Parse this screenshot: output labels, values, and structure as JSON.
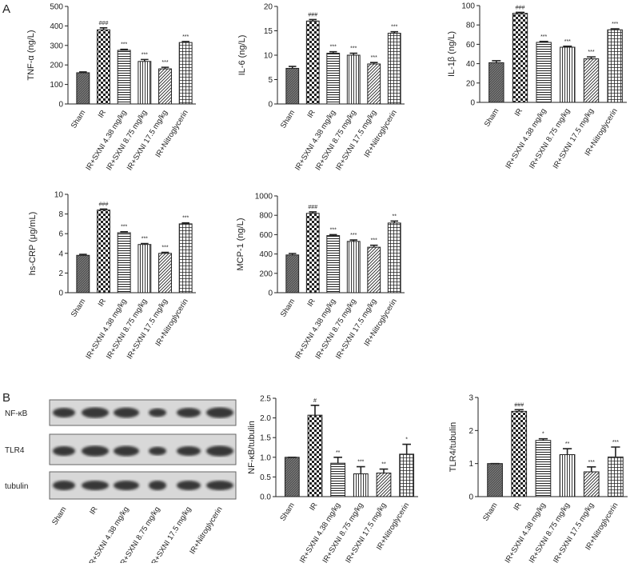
{
  "panels": [
    "A",
    "B"
  ],
  "blot": {
    "rows": [
      "NF-κB",
      "TLR4",
      "tubulin"
    ],
    "categories": [
      "Sham",
      "IR",
      "IR+SXNI 4.38 mg/kg",
      "IR+SXNI 8.75 mg/kg",
      "IR+SXNI 17.5 mg/kg",
      "IR+Nitroglycerin"
    ]
  },
  "chart_data": [
    {
      "type": "bar",
      "ylabel": "TNF-α (ng/L)",
      "categories": [
        "Sham",
        "IR",
        "IR+SXNI 4.38 mg/kg",
        "IR+SXNI 8.75 mg/kg",
        "IR+SXNI 17.5 mg/kg",
        "IR+Nitroglycerin"
      ],
      "values": [
        160,
        380,
        275,
        218,
        180,
        315
      ],
      "errors": [
        4,
        10,
        5,
        10,
        8,
        5
      ],
      "annotations": [
        null,
        "###",
        "***",
        "***",
        "***",
        "***"
      ],
      "ylim": [
        0,
        500
      ],
      "yticks": [
        0,
        100,
        200,
        300,
        400,
        500
      ]
    },
    {
      "type": "bar",
      "ylabel": "IL-6 (ng/L)",
      "categories": [
        "Sham",
        "IR",
        "IR+SXNI 4.38 mg/kg",
        "IR+SXNI 8.75 mg/kg",
        "IR+SXNI 17.5 mg/kg",
        "IR+Nitroglycerin"
      ],
      "values": [
        7.3,
        17,
        10.4,
        10,
        8.2,
        14.5
      ],
      "errors": [
        0.4,
        0.3,
        0.3,
        0.4,
        0.3,
        0.3
      ],
      "annotations": [
        null,
        "###",
        "***",
        "***",
        "***",
        "***"
      ],
      "ylim": [
        0,
        20
      ],
      "yticks": [
        0,
        5,
        10,
        15,
        20
      ]
    },
    {
      "type": "bar",
      "ylabel": "IL-1β (ng/L)",
      "categories": [
        "Sham",
        "IR",
        "IR+SXNI 4.38 mg/kg",
        "IR+SXNI 8.75 mg/kg",
        "IR+SXNI 17.5 mg/kg",
        "IR+Nitroglycerin"
      ],
      "values": [
        41,
        92,
        62,
        57,
        45,
        75
      ],
      "errors": [
        2,
        1,
        1,
        1,
        2,
        1
      ],
      "annotations": [
        null,
        "###",
        "***",
        "***",
        "***",
        "***"
      ],
      "ylim": [
        0,
        100
      ],
      "yticks": [
        0,
        20,
        40,
        60,
        80,
        100
      ]
    },
    {
      "type": "bar",
      "ylabel": "hs-CRP (μg/mL)",
      "categories": [
        "Sham",
        "IR",
        "IR+SXNI 4.38 mg/kg",
        "IR+SXNI 8.75 mg/kg",
        "IR+SXNI 17.5 mg/kg",
        "IR+Nitroglycerin"
      ],
      "values": [
        3.8,
        8.4,
        6.1,
        4.9,
        4.0,
        7.0
      ],
      "errors": [
        0.1,
        0.1,
        0.1,
        0.1,
        0.1,
        0.1
      ],
      "annotations": [
        null,
        "###",
        "***",
        "***",
        "***",
        "***"
      ],
      "ylim": [
        0,
        10
      ],
      "yticks": [
        0,
        2,
        4,
        6,
        8,
        10
      ]
    },
    {
      "type": "bar",
      "ylabel": "MCP-1 (ng/L)",
      "categories": [
        "Sham",
        "IR",
        "IR+SXNI 4.38 mg/kg",
        "IR+SXNI 8.75 mg/kg",
        "IR+SXNI 17.5 mg/kg",
        "IR+Nitroglycerin"
      ],
      "values": [
        390,
        820,
        590,
        530,
        470,
        720
      ],
      "errors": [
        15,
        15,
        10,
        15,
        20,
        20
      ],
      "annotations": [
        null,
        "###",
        "***",
        "***",
        "***",
        "**"
      ],
      "ylim": [
        0,
        1000
      ],
      "yticks": [
        0,
        200,
        400,
        600,
        800,
        1000
      ]
    },
    {
      "type": "bar",
      "ylabel": "NF-κB/tubulin",
      "categories": [
        "Sham",
        "IR",
        "IR+SXNI 4.38 mg/kg",
        "IR+SXNI 8.75 mg/kg",
        "IR+SXNI 17.5 mg/kg",
        "IR+Nitroglycerin"
      ],
      "values": [
        1.0,
        2.07,
        0.85,
        0.58,
        0.6,
        1.08
      ],
      "errors": [
        0,
        0.25,
        0.15,
        0.18,
        0.1,
        0.25
      ],
      "annotations": [
        null,
        "#",
        "**",
        "***",
        "**",
        "*"
      ],
      "ylim": [
        0,
        2.5
      ],
      "yticks": [
        {
          "value": 0,
          "label": "0.0"
        },
        0.5,
        {
          "value": 1,
          "label": "1.0"
        },
        1.5,
        {
          "value": 2,
          "label": "2.0"
        },
        2.5
      ]
    },
    {
      "type": "bar",
      "ylabel": "TLR4/tubulin",
      "categories": [
        "Sham",
        "IR",
        "IR+SXNI 4.38 mg/kg",
        "IR+SXNI 8.75 mg/kg",
        "IR+SXNI 17.5 mg/kg",
        "IR+Nitroglycerin"
      ],
      "values": [
        1.0,
        2.58,
        1.7,
        1.27,
        0.75,
        1.2
      ],
      "errors": [
        0,
        0.05,
        0.05,
        0.18,
        0.15,
        0.3
      ],
      "annotations": [
        null,
        "###",
        "*",
        "**",
        "***",
        "***"
      ],
      "ylim": [
        0,
        3
      ],
      "yticks": [
        0,
        1,
        2,
        3
      ]
    }
  ]
}
